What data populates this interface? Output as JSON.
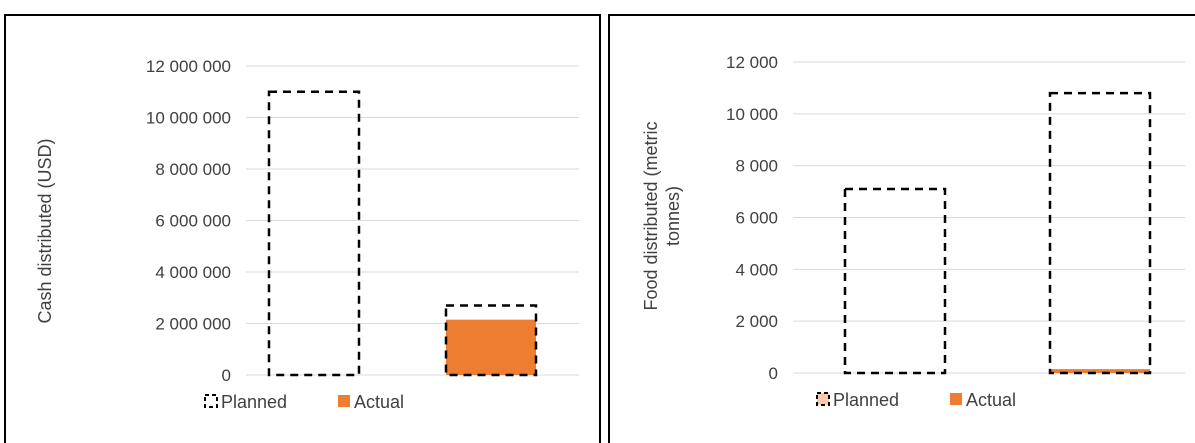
{
  "chart_data": [
    {
      "type": "bar",
      "ylabel_lines": [
        "Cash distributed (USD)"
      ],
      "ylim": [
        0,
        12000000
      ],
      "ticks": [
        0,
        2000000,
        4000000,
        6000000,
        8000000,
        10000000,
        12000000
      ],
      "tick_labels": [
        "0",
        "2 000 000",
        "4 000 000",
        "6 000 000",
        "8 000 000",
        "10 000 000",
        "12 000 000"
      ],
      "grid": true,
      "series": [
        {
          "name": "Planned",
          "style": "dashed-outline",
          "values": [
            11000000,
            2700000
          ]
        },
        {
          "name": "Actual",
          "style": "filled",
          "values": [
            0,
            2150000
          ]
        }
      ],
      "legend": {
        "placement": "bottom-left",
        "planned": "Planned",
        "actual": "Actual"
      }
    },
    {
      "type": "bar",
      "ylabel_lines": [
        "Food distributed (metric",
        "tonnes)"
      ],
      "ylim": [
        0,
        12000
      ],
      "ticks": [
        0,
        2000,
        4000,
        6000,
        8000,
        10000,
        12000
      ],
      "tick_labels": [
        "0",
        "2 000",
        "4 000",
        "6 000",
        "8 000",
        "10 000",
        "12 000"
      ],
      "grid": true,
      "series": [
        {
          "name": "Planned",
          "style": "dashed-outline",
          "values": [
            7100,
            10800
          ]
        },
        {
          "name": "Actual",
          "style": "filled",
          "values": [
            0,
            150
          ]
        }
      ],
      "legend": {
        "placement": "bottom-left",
        "planned": "Planned",
        "actual": "Actual"
      }
    }
  ],
  "colors": {
    "actual": "#ED7D31",
    "grid": "#D9D9D9",
    "text": "#404040",
    "outline": "#000000"
  }
}
